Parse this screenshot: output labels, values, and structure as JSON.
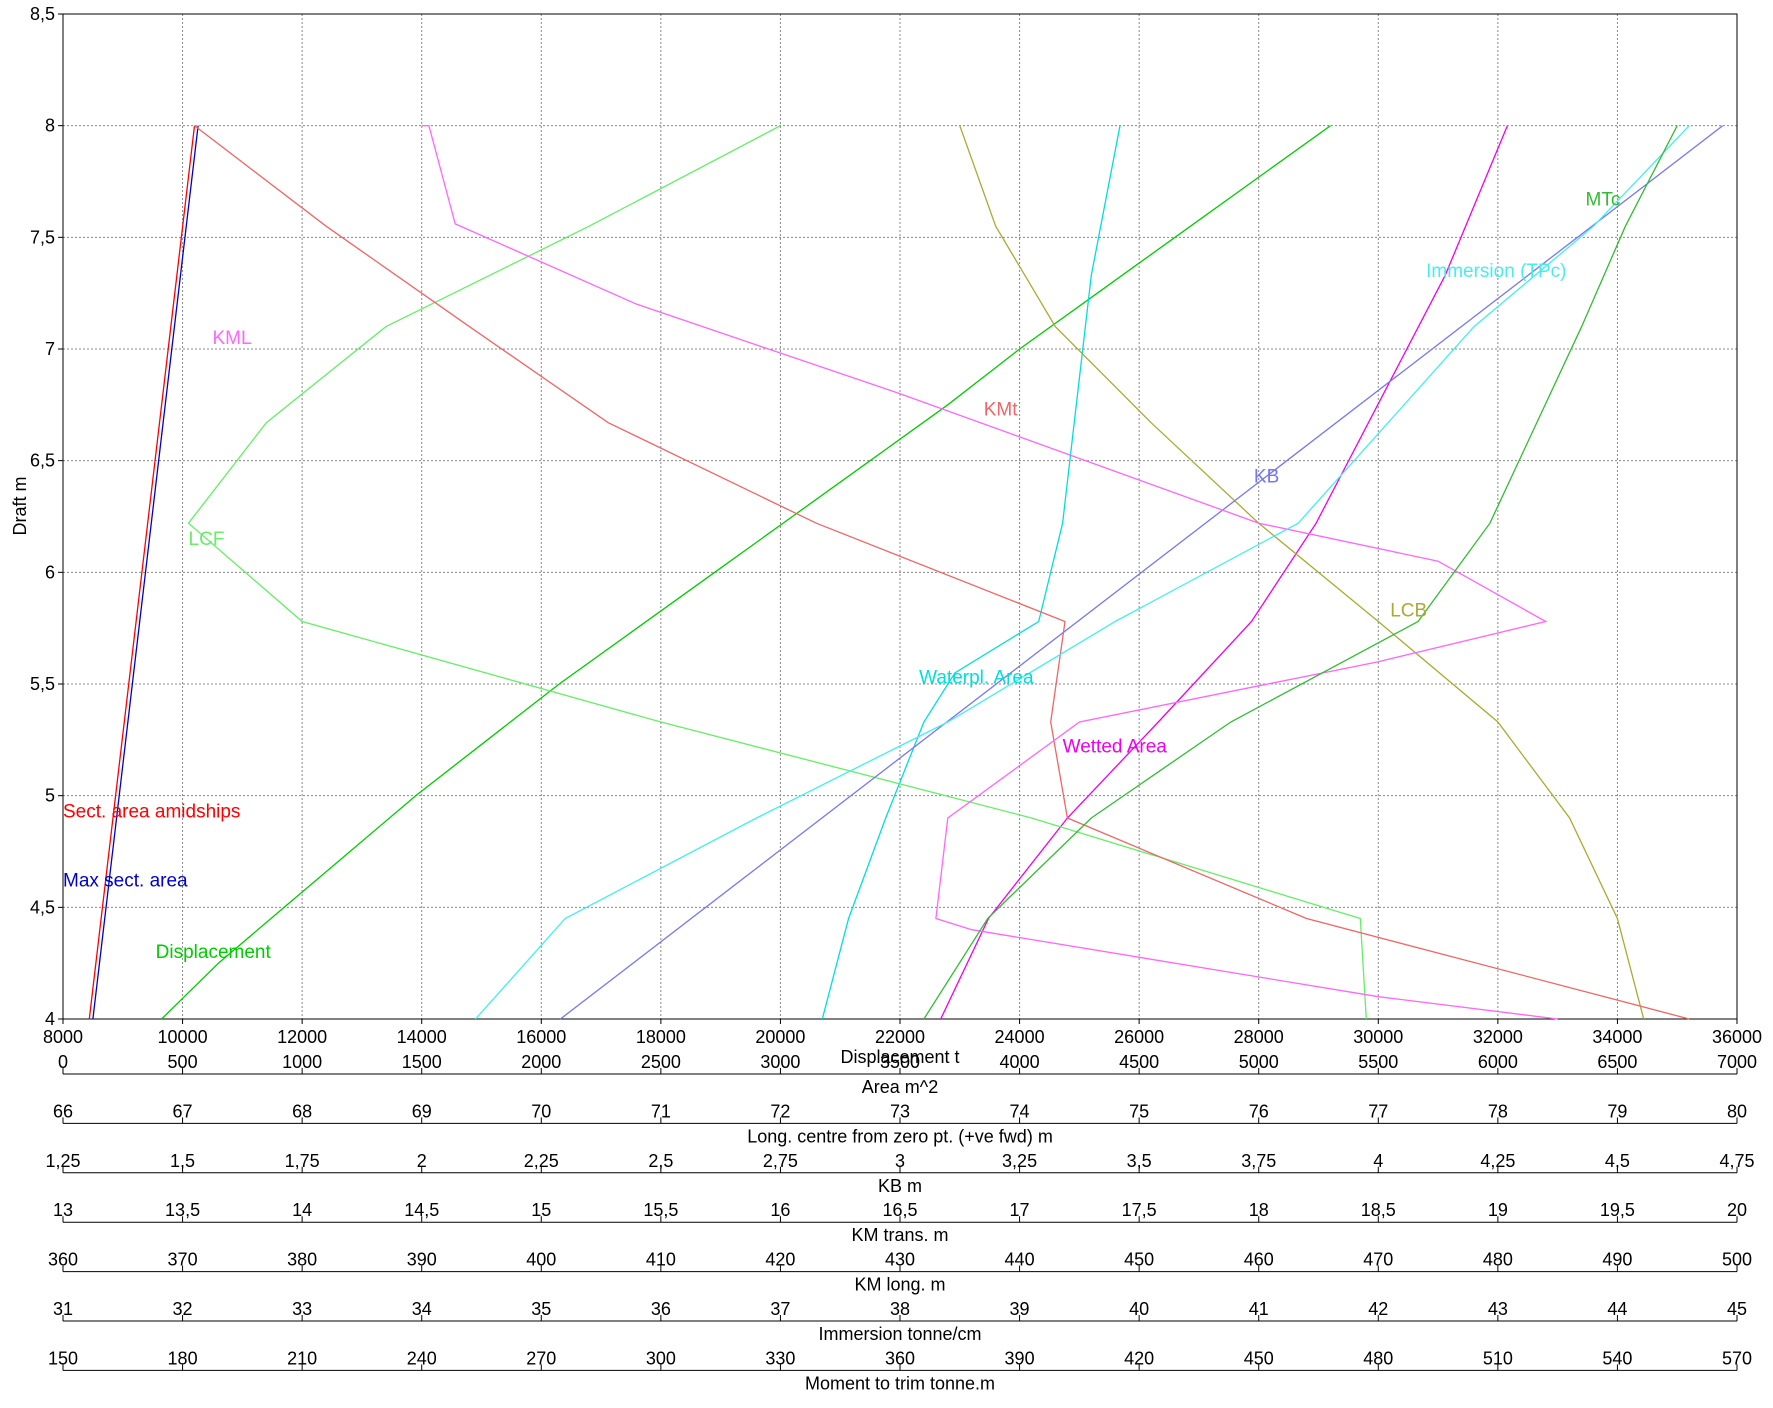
{
  "chart_data": {
    "type": "line",
    "title": "",
    "ylabel": "Draft  m",
    "y_range": [
      4,
      8.5
    ],
    "y_ticks": [
      "4",
      "4,5",
      "5",
      "5,5",
      "6",
      "6,5",
      "7",
      "7,5",
      "8",
      "8,5"
    ],
    "grid": true,
    "axes": [
      {
        "id": "displacement",
        "label": "Displacement  t",
        "range": [
          8000,
          36000
        ],
        "ticks": [
          "8000",
          "10000",
          "12000",
          "14000",
          "16000",
          "18000",
          "20000",
          "22000",
          "24000",
          "26000",
          "28000",
          "30000",
          "32000",
          "34000",
          "36000"
        ]
      },
      {
        "id": "area",
        "label": "Area  m^2",
        "range": [
          0,
          7000
        ],
        "ticks": [
          "0",
          "500",
          "1000",
          "1500",
          "2000",
          "2500",
          "3000",
          "3500",
          "4000",
          "4500",
          "5000",
          "5500",
          "6000",
          "6500",
          "7000"
        ]
      },
      {
        "id": "long_centre",
        "label": "Long. centre  from zero pt. (+ve fwd) m",
        "range": [
          66,
          80
        ],
        "ticks": [
          "66",
          "67",
          "68",
          "69",
          "70",
          "71",
          "72",
          "73",
          "74",
          "75",
          "76",
          "77",
          "78",
          "79",
          "80"
        ]
      },
      {
        "id": "kb",
        "label": "KB  m",
        "range": [
          1.25,
          4.75
        ],
        "ticks": [
          "1,25",
          "1,5",
          "1,75",
          "2",
          "2,25",
          "2,5",
          "2,75",
          "3",
          "3,25",
          "3,5",
          "3,75",
          "4",
          "4,25",
          "4,5",
          "4,75"
        ]
      },
      {
        "id": "km_trans",
        "label": "KM trans.  m",
        "range": [
          13,
          20
        ],
        "ticks": [
          "13",
          "13,5",
          "14",
          "14,5",
          "15",
          "15,5",
          "16",
          "16,5",
          "17",
          "17,5",
          "18",
          "18,5",
          "19",
          "19,5",
          "20"
        ]
      },
      {
        "id": "km_long",
        "label": "KM long.  m",
        "range": [
          360,
          500
        ],
        "ticks": [
          "360",
          "370",
          "380",
          "390",
          "400",
          "410",
          "420",
          "430",
          "440",
          "450",
          "460",
          "470",
          "480",
          "490",
          "500"
        ]
      },
      {
        "id": "immersion",
        "label": "Immersion  tonne/cm",
        "range": [
          31,
          45
        ],
        "ticks": [
          "31",
          "32",
          "33",
          "34",
          "35",
          "36",
          "37",
          "38",
          "39",
          "40",
          "41",
          "42",
          "43",
          "44",
          "45"
        ]
      },
      {
        "id": "mtc",
        "label": "Moment to trim  tonne.m",
        "range": [
          150,
          570
        ],
        "ticks": [
          "150",
          "180",
          "210",
          "240",
          "270",
          "300",
          "330",
          "360",
          "390",
          "420",
          "450",
          "480",
          "510",
          "540",
          "570"
        ]
      }
    ],
    "series": [
      {
        "name": "Displacement",
        "axis": "displacement",
        "color": "#00cc00",
        "label_at": [
          9550,
          4.3
        ],
        "points": [
          [
            9650,
            4
          ],
          [
            10600,
            4.25
          ],
          [
            11700,
            4.5
          ],
          [
            12800,
            4.75
          ],
          [
            13900,
            5
          ],
          [
            15100,
            5.25
          ],
          [
            16300,
            5.5
          ],
          [
            17600,
            5.75
          ],
          [
            18900,
            6
          ],
          [
            20200,
            6.25
          ],
          [
            21500,
            6.5
          ],
          [
            22800,
            6.75
          ],
          [
            24000,
            7
          ],
          [
            25300,
            7.25
          ],
          [
            26600,
            7.5
          ],
          [
            27900,
            7.75
          ],
          [
            29200,
            8
          ]
        ]
      },
      {
        "name": "Sect. area amidships",
        "axis": "area",
        "color": "#ff0000",
        "label_at": [
          0,
          4.93
        ],
        "points": [
          [
            110,
            4
          ],
          [
            220,
            5
          ],
          [
            330,
            6
          ],
          [
            440,
            7
          ],
          [
            550,
            8
          ]
        ]
      },
      {
        "name": "Max sect. area",
        "axis": "area",
        "color": "#0000cc",
        "label_at": [
          0,
          4.62
        ],
        "points": [
          [
            125,
            4
          ],
          [
            235,
            5
          ],
          [
            345,
            6
          ],
          [
            455,
            7
          ],
          [
            565,
            8
          ]
        ]
      },
      {
        "name": "Waterpl. Area",
        "axis": "area",
        "color": "#00dddd",
        "label_at": [
          3580,
          5.53
        ],
        "points": [
          [
            3175,
            4
          ],
          [
            3285,
            4.45
          ],
          [
            3440,
            4.9
          ],
          [
            3600,
            5.33
          ],
          [
            3730,
            5.55
          ],
          [
            4080,
            5.78
          ],
          [
            4180,
            6.22
          ],
          [
            4300,
            7.33
          ],
          [
            4420,
            8
          ]
        ]
      },
      {
        "name": "Wetted Area",
        "axis": "area",
        "color": "#ee00ee",
        "label_at": [
          4180,
          5.22
        ],
        "points": [
          [
            3670,
            4
          ],
          [
            3870,
            4.45
          ],
          [
            4200,
            4.9
          ],
          [
            4580,
            5.33
          ],
          [
            4970,
            5.78
          ],
          [
            5240,
            6.22
          ],
          [
            5780,
            7.33
          ],
          [
            6040,
            8
          ]
        ]
      },
      {
        "name": "LCF",
        "axis": "long_centre",
        "color": "#66ee66",
        "label_at": [
          67.05,
          6.15
        ],
        "points": [
          [
            76.9,
            4
          ],
          [
            76.85,
            4.45
          ],
          [
            74.1,
            4.9
          ],
          [
            71.0,
            5.33
          ],
          [
            68.0,
            5.78
          ],
          [
            67.05,
            6.22
          ],
          [
            67.7,
            6.67
          ],
          [
            68.7,
            7.1
          ],
          [
            70.4,
            7.55
          ],
          [
            72.0,
            8
          ]
        ]
      },
      {
        "name": "LCB",
        "axis": "long_centre",
        "color": "#aaaa33",
        "label_at": [
          77.1,
          5.83
        ],
        "points": [
          [
            79.22,
            4
          ],
          [
            79.0,
            4.45
          ],
          [
            78.6,
            4.9
          ],
          [
            78.0,
            5.33
          ],
          [
            77.0,
            5.78
          ],
          [
            76.0,
            6.22
          ],
          [
            75.1,
            6.67
          ],
          [
            74.3,
            7.1
          ],
          [
            73.8,
            7.55
          ],
          [
            73.5,
            8
          ]
        ]
      },
      {
        "name": "KB",
        "axis": "kb",
        "color": "#7777ee",
        "label_at": [
          3.74,
          6.43
        ],
        "points": [
          [
            2.29,
            4
          ],
          [
            4.72,
            8
          ]
        ]
      },
      {
        "name": "KMt",
        "axis": "km_trans",
        "color": "#ee6666",
        "label_at": [
          16.85,
          6.73
        ],
        "points": [
          [
            19.8,
            4
          ],
          [
            18.2,
            4.45
          ],
          [
            17.2,
            4.9
          ],
          [
            17.13,
            5.33
          ],
          [
            17.19,
            5.78
          ],
          [
            16.15,
            6.22
          ],
          [
            15.28,
            6.67
          ],
          [
            14.7,
            7.1
          ],
          [
            14.1,
            7.55
          ],
          [
            13.55,
            8
          ]
        ]
      },
      {
        "name": "KML",
        "axis": "km_long",
        "color": "#ff66ff",
        "label_at": [
          372.5,
          7.05
        ],
        "points": [
          [
            390,
            8
          ],
          [
            390.6,
            8
          ],
          [
            392.8,
            7.56
          ],
          [
            408,
            7.2
          ],
          [
            430,
            6.8
          ],
          [
            460,
            6.22
          ],
          [
            475,
            6.05
          ],
          [
            484,
            5.78
          ],
          [
            470,
            5.6
          ],
          [
            445,
            5.33
          ],
          [
            434,
            4.9
          ],
          [
            433,
            4.45
          ],
          [
            436,
            4.4
          ],
          [
            470,
            4.1
          ],
          [
            485,
            4
          ]
        ]
      },
      {
        "name": "Immersion (TPc)",
        "axis": "immersion",
        "color": "#44eeee",
        "label_at": [
          42.4,
          7.35
        ],
        "points": [
          [
            34.45,
            4
          ],
          [
            35.2,
            4.45
          ],
          [
            36.8,
            4.9
          ],
          [
            38.4,
            5.33
          ],
          [
            39.8,
            5.78
          ],
          [
            41.33,
            6.22
          ],
          [
            42.8,
            7.1
          ],
          [
            43.8,
            7.55
          ],
          [
            44.6,
            8
          ]
        ]
      },
      {
        "name": "MTc",
        "axis": "mtc",
        "color": "#33bb33",
        "label_at": [
          532,
          7.67
        ],
        "points": [
          [
            366,
            4
          ],
          [
            382,
            4.45
          ],
          [
            408,
            4.9
          ],
          [
            443,
            5.33
          ],
          [
            490,
            5.78
          ],
          [
            508,
            6.22
          ],
          [
            531,
            7.1
          ],
          [
            542,
            7.55
          ],
          [
            555,
            8
          ]
        ]
      }
    ]
  }
}
